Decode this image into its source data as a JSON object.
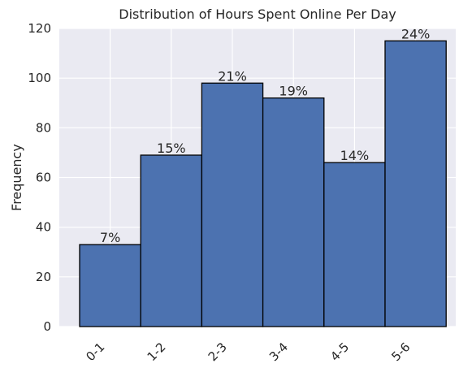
{
  "chart_data": {
    "type": "bar",
    "title": "Distribution of Hours Spent Online Per Day",
    "xlabel": "",
    "ylabel": "Frequency",
    "categories": [
      "0-1",
      "1-2",
      "2-3",
      "3-4",
      "4-5",
      "5-6"
    ],
    "values": [
      33,
      69,
      98,
      92,
      66,
      115
    ],
    "data_labels": [
      "7%",
      "15%",
      "21%",
      "19%",
      "14%",
      "24%"
    ],
    "ylim": [
      0,
      120
    ],
    "yticks": [
      0,
      20,
      40,
      60,
      80,
      100,
      120
    ],
    "grid": true,
    "legend": "none",
    "colors": {
      "bar_fill": "#4c72b0",
      "bar_edge": "#000000",
      "plot_background": "#eaeaf2",
      "grid": "#ffffff"
    }
  }
}
